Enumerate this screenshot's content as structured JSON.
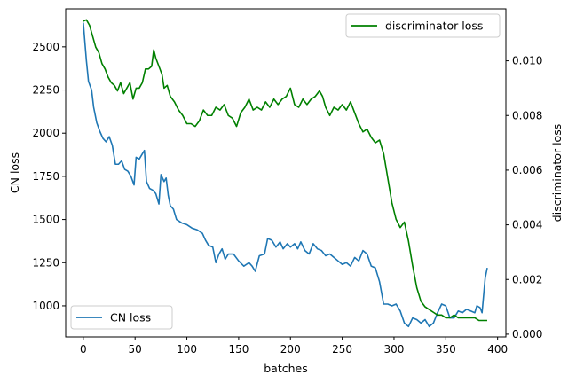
{
  "chart_data": {
    "type": "line",
    "xlabel": "batches",
    "ylabel_left": "CN loss",
    "ylabel_right": "discriminator loss",
    "xlim": [
      -17,
      408
    ],
    "ylim_left": [
      820,
      2720
    ],
    "ylim_right": [
      -0.0001,
      0.0119
    ],
    "xticks": [
      0,
      50,
      100,
      150,
      200,
      250,
      300,
      350,
      400
    ],
    "yticks_left": [
      1000,
      1250,
      1500,
      1750,
      2000,
      2250,
      2500
    ],
    "yticks_right": [
      0.0,
      0.002,
      0.004,
      0.006,
      0.008,
      0.01
    ],
    "yticks_right_labels": [
      "0.000",
      "0.002",
      "0.004",
      "0.006",
      "0.008",
      "0.010"
    ],
    "grid": false,
    "series": [
      {
        "name": "CN loss",
        "axis": "left",
        "color": "#1f77b4",
        "legend": "bottom-left",
        "points": [
          [
            0,
            2640
          ],
          [
            3,
            2420
          ],
          [
            5,
            2300
          ],
          [
            8,
            2250
          ],
          [
            10,
            2150
          ],
          [
            13,
            2060
          ],
          [
            16,
            2010
          ],
          [
            19,
            1970
          ],
          [
            22,
            1950
          ],
          [
            25,
            1980
          ],
          [
            28,
            1930
          ],
          [
            31,
            1820
          ],
          [
            34,
            1820
          ],
          [
            37,
            1840
          ],
          [
            40,
            1790
          ],
          [
            43,
            1780
          ],
          [
            46,
            1750
          ],
          [
            49,
            1700
          ],
          [
            51,
            1860
          ],
          [
            54,
            1850
          ],
          [
            57,
            1880
          ],
          [
            59,
            1900
          ],
          [
            61,
            1720
          ],
          [
            64,
            1680
          ],
          [
            67,
            1670
          ],
          [
            70,
            1650
          ],
          [
            73,
            1590
          ],
          [
            75,
            1760
          ],
          [
            78,
            1720
          ],
          [
            80,
            1740
          ],
          [
            82,
            1640
          ],
          [
            84,
            1580
          ],
          [
            87,
            1560
          ],
          [
            90,
            1500
          ],
          [
            95,
            1480
          ],
          [
            100,
            1470
          ],
          [
            105,
            1450
          ],
          [
            110,
            1440
          ],
          [
            115,
            1420
          ],
          [
            118,
            1380
          ],
          [
            121,
            1350
          ],
          [
            125,
            1340
          ],
          [
            128,
            1250
          ],
          [
            131,
            1300
          ],
          [
            134,
            1330
          ],
          [
            137,
            1270
          ],
          [
            140,
            1300
          ],
          [
            145,
            1300
          ],
          [
            150,
            1260
          ],
          [
            155,
            1230
          ],
          [
            160,
            1250
          ],
          [
            163,
            1230
          ],
          [
            166,
            1200
          ],
          [
            170,
            1290
          ],
          [
            175,
            1300
          ],
          [
            178,
            1390
          ],
          [
            182,
            1380
          ],
          [
            186,
            1340
          ],
          [
            190,
            1370
          ],
          [
            193,
            1330
          ],
          [
            197,
            1360
          ],
          [
            200,
            1340
          ],
          [
            204,
            1360
          ],
          [
            207,
            1330
          ],
          [
            210,
            1370
          ],
          [
            214,
            1320
          ],
          [
            218,
            1300
          ],
          [
            222,
            1360
          ],
          [
            226,
            1330
          ],
          [
            230,
            1320
          ],
          [
            234,
            1290
          ],
          [
            238,
            1300
          ],
          [
            242,
            1280
          ],
          [
            246,
            1260
          ],
          [
            250,
            1240
          ],
          [
            254,
            1250
          ],
          [
            258,
            1230
          ],
          [
            262,
            1280
          ],
          [
            266,
            1260
          ],
          [
            270,
            1320
          ],
          [
            274,
            1300
          ],
          [
            278,
            1230
          ],
          [
            282,
            1220
          ],
          [
            286,
            1140
          ],
          [
            290,
            1010
          ],
          [
            294,
            1010
          ],
          [
            298,
            1000
          ],
          [
            302,
            1010
          ],
          [
            306,
            970
          ],
          [
            310,
            900
          ],
          [
            314,
            880
          ],
          [
            318,
            930
          ],
          [
            322,
            920
          ],
          [
            326,
            900
          ],
          [
            330,
            920
          ],
          [
            334,
            880
          ],
          [
            338,
            900
          ],
          [
            342,
            960
          ],
          [
            346,
            1010
          ],
          [
            350,
            1000
          ],
          [
            354,
            930
          ],
          [
            358,
            930
          ],
          [
            362,
            970
          ],
          [
            366,
            960
          ],
          [
            370,
            980
          ],
          [
            374,
            970
          ],
          [
            378,
            960
          ],
          [
            380,
            1000
          ],
          [
            383,
            990
          ],
          [
            385,
            960
          ],
          [
            388,
            1160
          ],
          [
            390,
            1220
          ]
        ]
      },
      {
        "name": "discriminator loss",
        "axis": "right",
        "color": "#008000",
        "legend": "top-right",
        "points": [
          [
            0,
            0.01145
          ],
          [
            3,
            0.0115
          ],
          [
            6,
            0.0113
          ],
          [
            9,
            0.0109
          ],
          [
            12,
            0.0105
          ],
          [
            15,
            0.0103
          ],
          [
            18,
            0.0099
          ],
          [
            21,
            0.0097
          ],
          [
            24,
            0.0094
          ],
          [
            27,
            0.0092
          ],
          [
            30,
            0.0091
          ],
          [
            33,
            0.0089
          ],
          [
            36,
            0.0092
          ],
          [
            39,
            0.0088
          ],
          [
            42,
            0.009
          ],
          [
            45,
            0.0092
          ],
          [
            48,
            0.0086
          ],
          [
            51,
            0.009
          ],
          [
            54,
            0.009
          ],
          [
            57,
            0.0092
          ],
          [
            60,
            0.0097
          ],
          [
            63,
            0.0097
          ],
          [
            66,
            0.0098
          ],
          [
            68,
            0.0104
          ],
          [
            70,
            0.0101
          ],
          [
            73,
            0.0098
          ],
          [
            76,
            0.0095
          ],
          [
            78,
            0.009
          ],
          [
            81,
            0.0091
          ],
          [
            84,
            0.0087
          ],
          [
            88,
            0.0085
          ],
          [
            92,
            0.0082
          ],
          [
            96,
            0.008
          ],
          [
            100,
            0.0077
          ],
          [
            104,
            0.0077
          ],
          [
            108,
            0.0076
          ],
          [
            112,
            0.0078
          ],
          [
            116,
            0.0082
          ],
          [
            120,
            0.008
          ],
          [
            124,
            0.008
          ],
          [
            128,
            0.0083
          ],
          [
            132,
            0.0082
          ],
          [
            136,
            0.0084
          ],
          [
            140,
            0.008
          ],
          [
            144,
            0.0079
          ],
          [
            148,
            0.0076
          ],
          [
            152,
            0.0081
          ],
          [
            156,
            0.0083
          ],
          [
            160,
            0.0086
          ],
          [
            164,
            0.0082
          ],
          [
            168,
            0.0083
          ],
          [
            172,
            0.0082
          ],
          [
            176,
            0.0085
          ],
          [
            180,
            0.0083
          ],
          [
            184,
            0.0086
          ],
          [
            188,
            0.0084
          ],
          [
            192,
            0.0086
          ],
          [
            196,
            0.0087
          ],
          [
            200,
            0.009
          ],
          [
            204,
            0.0084
          ],
          [
            208,
            0.0083
          ],
          [
            212,
            0.0086
          ],
          [
            216,
            0.0084
          ],
          [
            220,
            0.0086
          ],
          [
            224,
            0.0087
          ],
          [
            228,
            0.0089
          ],
          [
            231,
            0.0087
          ],
          [
            234,
            0.0083
          ],
          [
            238,
            0.008
          ],
          [
            242,
            0.0083
          ],
          [
            246,
            0.0082
          ],
          [
            250,
            0.0084
          ],
          [
            254,
            0.0082
          ],
          [
            258,
            0.0085
          ],
          [
            262,
            0.0081
          ],
          [
            266,
            0.0077
          ],
          [
            270,
            0.0074
          ],
          [
            274,
            0.0075
          ],
          [
            278,
            0.0072
          ],
          [
            282,
            0.007
          ],
          [
            286,
            0.0071
          ],
          [
            290,
            0.0066
          ],
          [
            294,
            0.0057
          ],
          [
            298,
            0.0048
          ],
          [
            302,
            0.0042
          ],
          [
            306,
            0.0039
          ],
          [
            310,
            0.0041
          ],
          [
            314,
            0.0034
          ],
          [
            318,
            0.0025
          ],
          [
            322,
            0.0017
          ],
          [
            326,
            0.0012
          ],
          [
            330,
            0.001
          ],
          [
            334,
            0.0009
          ],
          [
            338,
            0.0008
          ],
          [
            342,
            0.0007
          ],
          [
            346,
            0.0007
          ],
          [
            350,
            0.0006
          ],
          [
            354,
            0.0006
          ],
          [
            358,
            0.0007
          ],
          [
            362,
            0.0006
          ],
          [
            366,
            0.0006
          ],
          [
            370,
            0.0006
          ],
          [
            374,
            0.0006
          ],
          [
            378,
            0.0006
          ],
          [
            382,
            0.0005
          ],
          [
            386,
            0.0005
          ],
          [
            390,
            0.0005
          ]
        ]
      }
    ]
  }
}
